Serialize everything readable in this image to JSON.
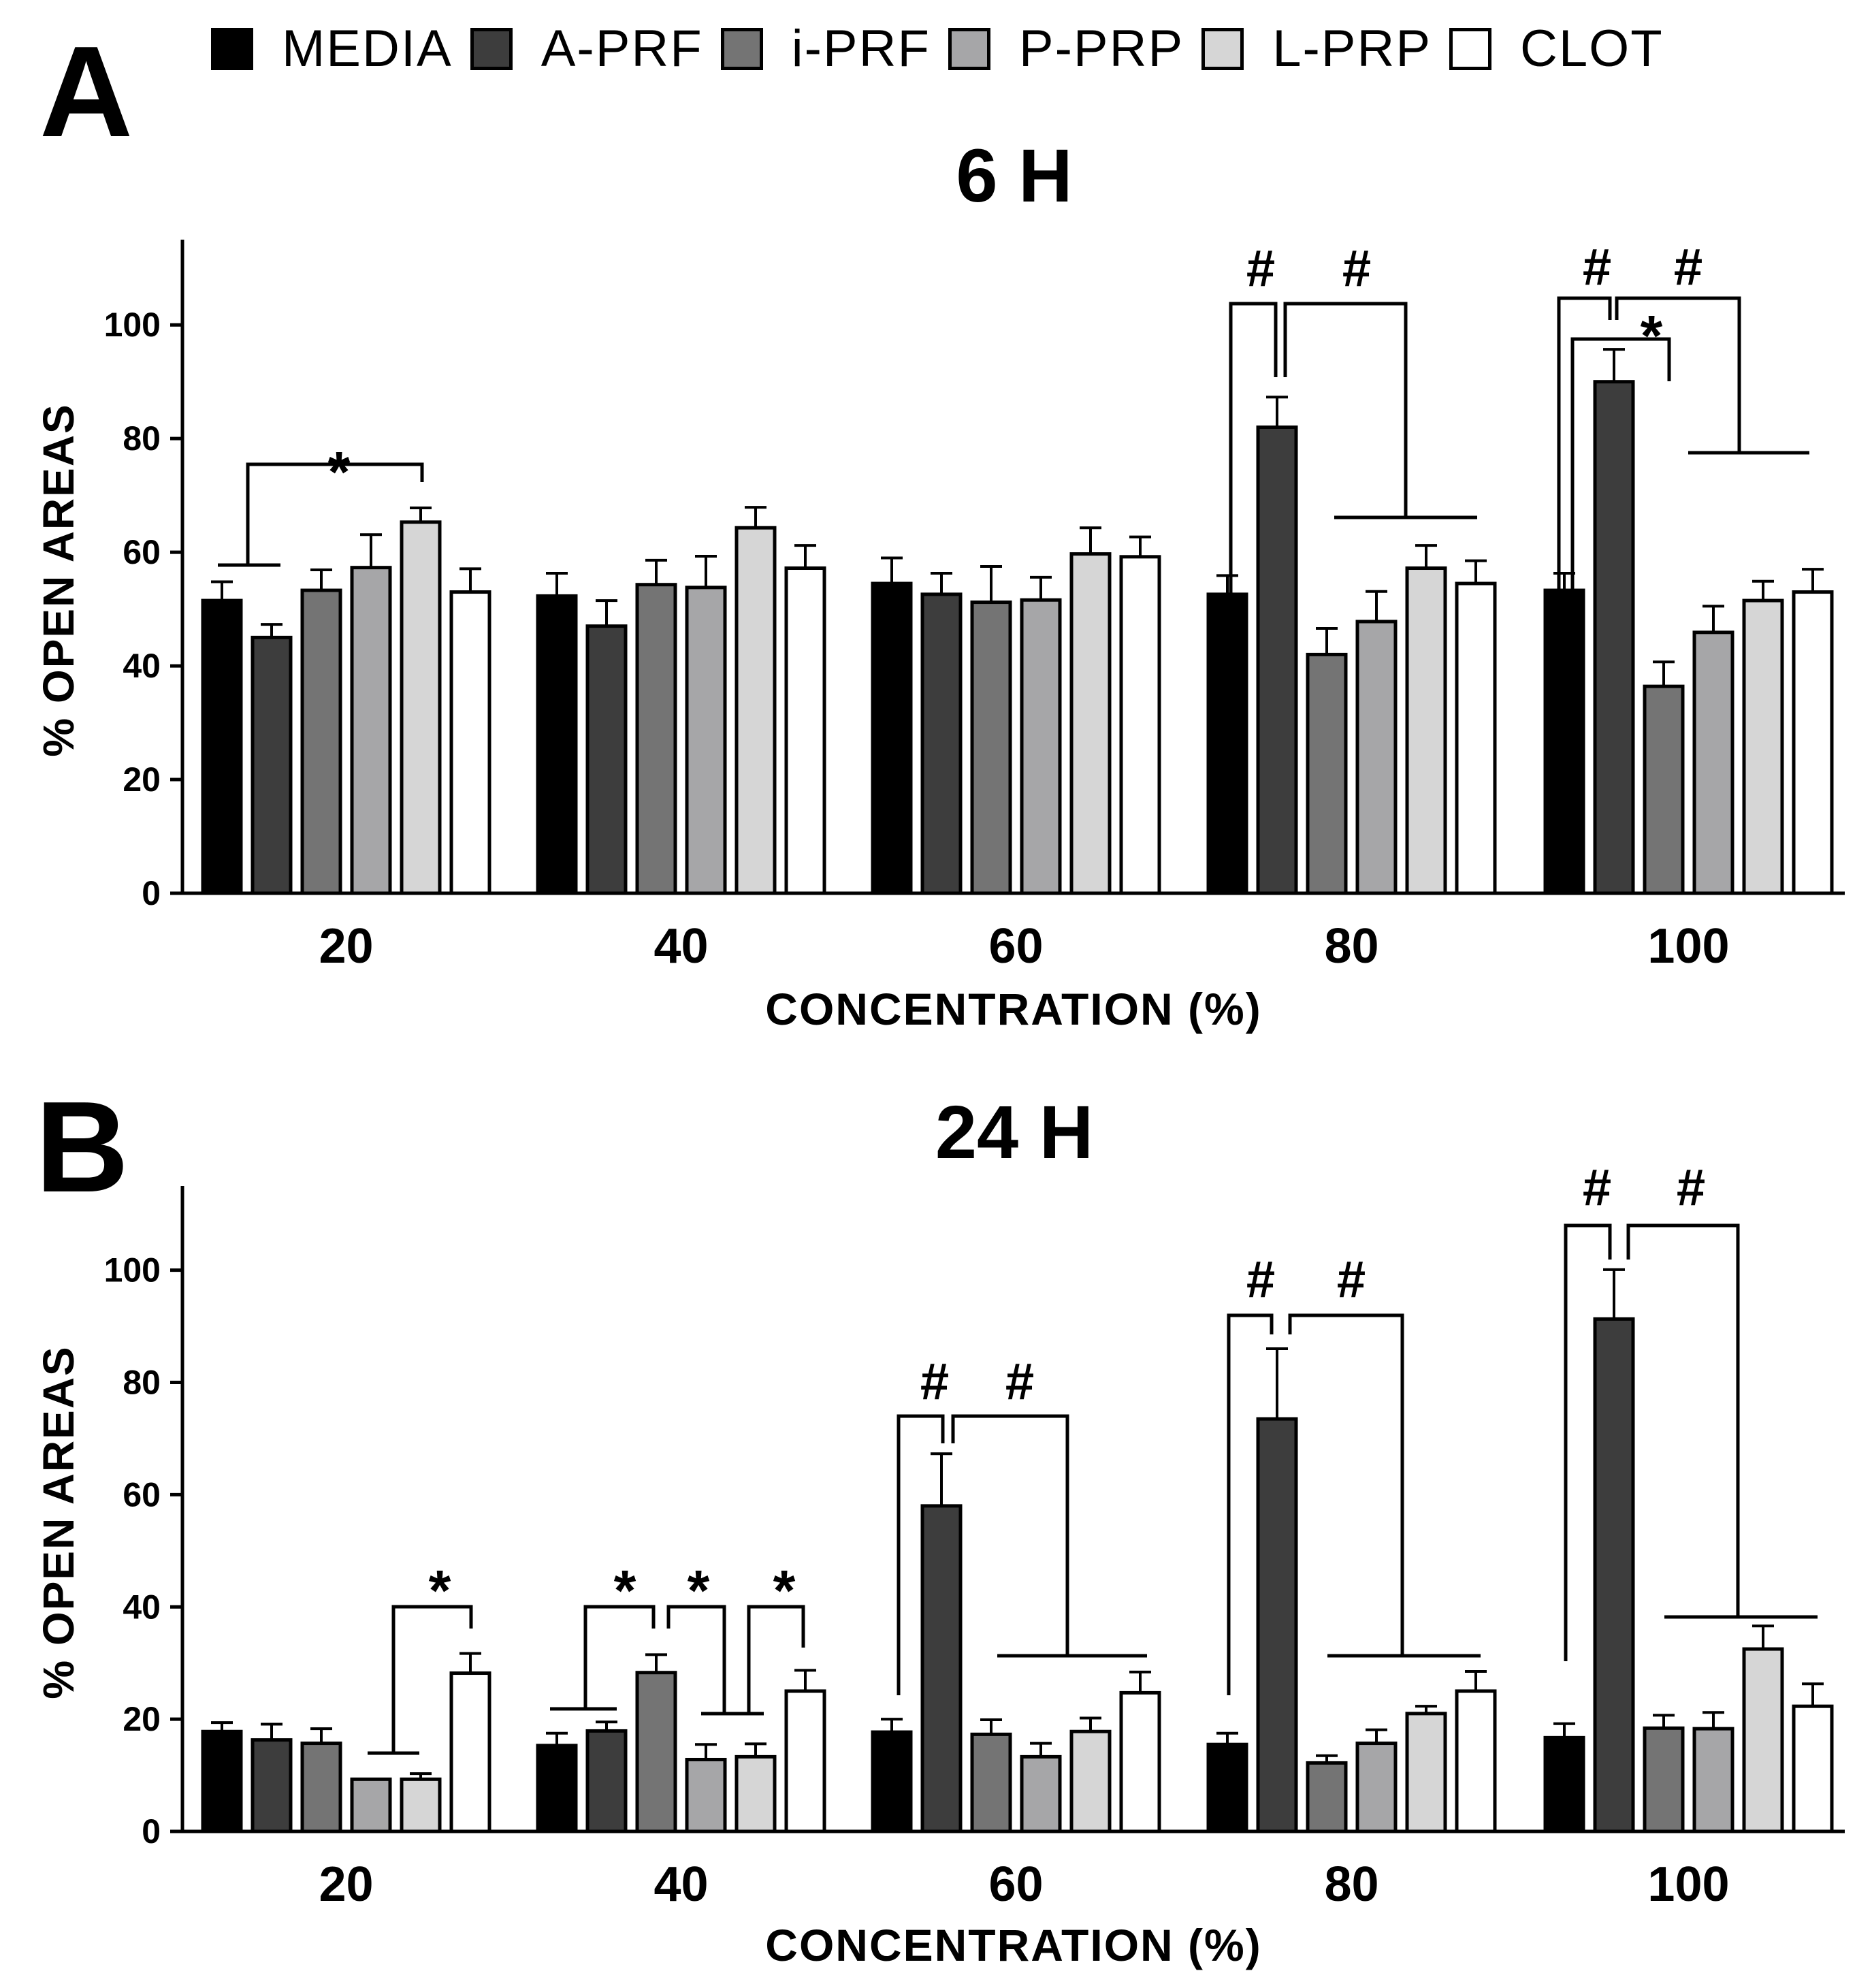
{
  "legend": [
    {
      "label": "MEDIA",
      "color": "#000000"
    },
    {
      "label": "A-PRF",
      "color": "#3d3d3d"
    },
    {
      "label": "i-PRF",
      "color": "#747474"
    },
    {
      "label": "P-PRP",
      "color": "#a6a6a8"
    },
    {
      "label": "L-PRP",
      "color": "#d6d6d6"
    },
    {
      "label": "CLOT",
      "color": "#ffffff"
    }
  ],
  "panels": [
    {
      "letter": "A",
      "title": "6 H"
    },
    {
      "letter": "B",
      "title": "24 H"
    }
  ],
  "chart_data": [
    {
      "type": "bar",
      "title": "6 H",
      "xlabel": "CONCENTRATION (%)",
      "ylabel": "% OPEN AREAS",
      "categories": [
        "20",
        "40",
        "60",
        "80",
        "100"
      ],
      "ylim": [
        0,
        115
      ],
      "yticks": [
        "0",
        "20",
        "40",
        "60",
        "80",
        "100"
      ],
      "series": [
        {
          "name": "MEDIA",
          "values": [
            51.5,
            52.3,
            54.5,
            52.6,
            53.3
          ],
          "errors": [
            3.3,
            4.0,
            4.5,
            3.3,
            3.0
          ]
        },
        {
          "name": "A-PRF",
          "values": [
            45.0,
            47.0,
            52.6,
            82.0,
            90.0
          ],
          "errors": [
            2.3,
            4.5,
            3.7,
            5.3,
            5.7
          ]
        },
        {
          "name": "i-PRF",
          "values": [
            53.3,
            54.3,
            51.2,
            42.0,
            36.4
          ],
          "errors": [
            3.6,
            4.3,
            6.3,
            4.6,
            4.3
          ]
        },
        {
          "name": "P-PRP",
          "values": [
            57.3,
            53.8,
            51.6,
            47.8,
            45.9
          ],
          "errors": [
            5.8,
            5.5,
            4.0,
            5.3,
            4.6
          ]
        },
        {
          "name": "L-PRP",
          "values": [
            65.3,
            64.3,
            59.7,
            57.2,
            51.5
          ],
          "errors": [
            2.5,
            3.6,
            4.6,
            4.0,
            3.4
          ]
        },
        {
          "name": "CLOT",
          "values": [
            53.0,
            57.2,
            59.2,
            54.5,
            53.0
          ],
          "errors": [
            4.1,
            4.0,
            3.5,
            4.0,
            4.0
          ]
        }
      ],
      "annotations": [
        "*",
        "#",
        "#",
        "#",
        "#",
        "*"
      ]
    },
    {
      "type": "bar",
      "title": "24 H",
      "xlabel": "CONCENTRATION (%)",
      "ylabel": "% OPEN AREAS",
      "categories": [
        "20",
        "40",
        "60",
        "80",
        "100"
      ],
      "ylim": [
        0,
        115
      ],
      "yticks": [
        "0",
        "20",
        "40",
        "60",
        "80",
        "100"
      ],
      "series": [
        {
          "name": "MEDIA",
          "values": [
            17.8,
            15.3,
            17.7,
            15.5,
            16.7
          ],
          "errors": [
            1.6,
            2.2,
            2.3,
            2.0,
            2.5
          ]
        },
        {
          "name": "A-PRF",
          "values": [
            16.3,
            17.9,
            58.0,
            73.5,
            91.3
          ],
          "errors": [
            2.8,
            1.6,
            9.3,
            12.5,
            8.8
          ]
        },
        {
          "name": "i-PRF",
          "values": [
            15.7,
            28.3,
            17.3,
            12.2,
            18.4
          ],
          "errors": [
            2.6,
            3.2,
            2.6,
            1.3,
            2.3
          ]
        },
        {
          "name": "P-PRP",
          "values": [
            9.3,
            12.8,
            13.3,
            15.7,
            18.3
          ],
          "errors": [
            0.0,
            2.7,
            2.4,
            2.4,
            2.9
          ]
        },
        {
          "name": "L-PRP",
          "values": [
            9.3,
            13.3,
            17.8,
            21.0,
            32.5
          ],
          "errors": [
            1.0,
            2.3,
            2.4,
            1.3,
            4.1
          ]
        },
        {
          "name": "CLOT",
          "values": [
            28.2,
            25.0,
            24.7,
            25.0,
            22.3
          ],
          "errors": [
            3.5,
            3.7,
            3.7,
            3.5,
            4.0
          ]
        }
      ],
      "annotations": [
        "*",
        "*",
        "*",
        "*",
        "#",
        "#",
        "#",
        "#",
        "#",
        "#"
      ]
    }
  ]
}
